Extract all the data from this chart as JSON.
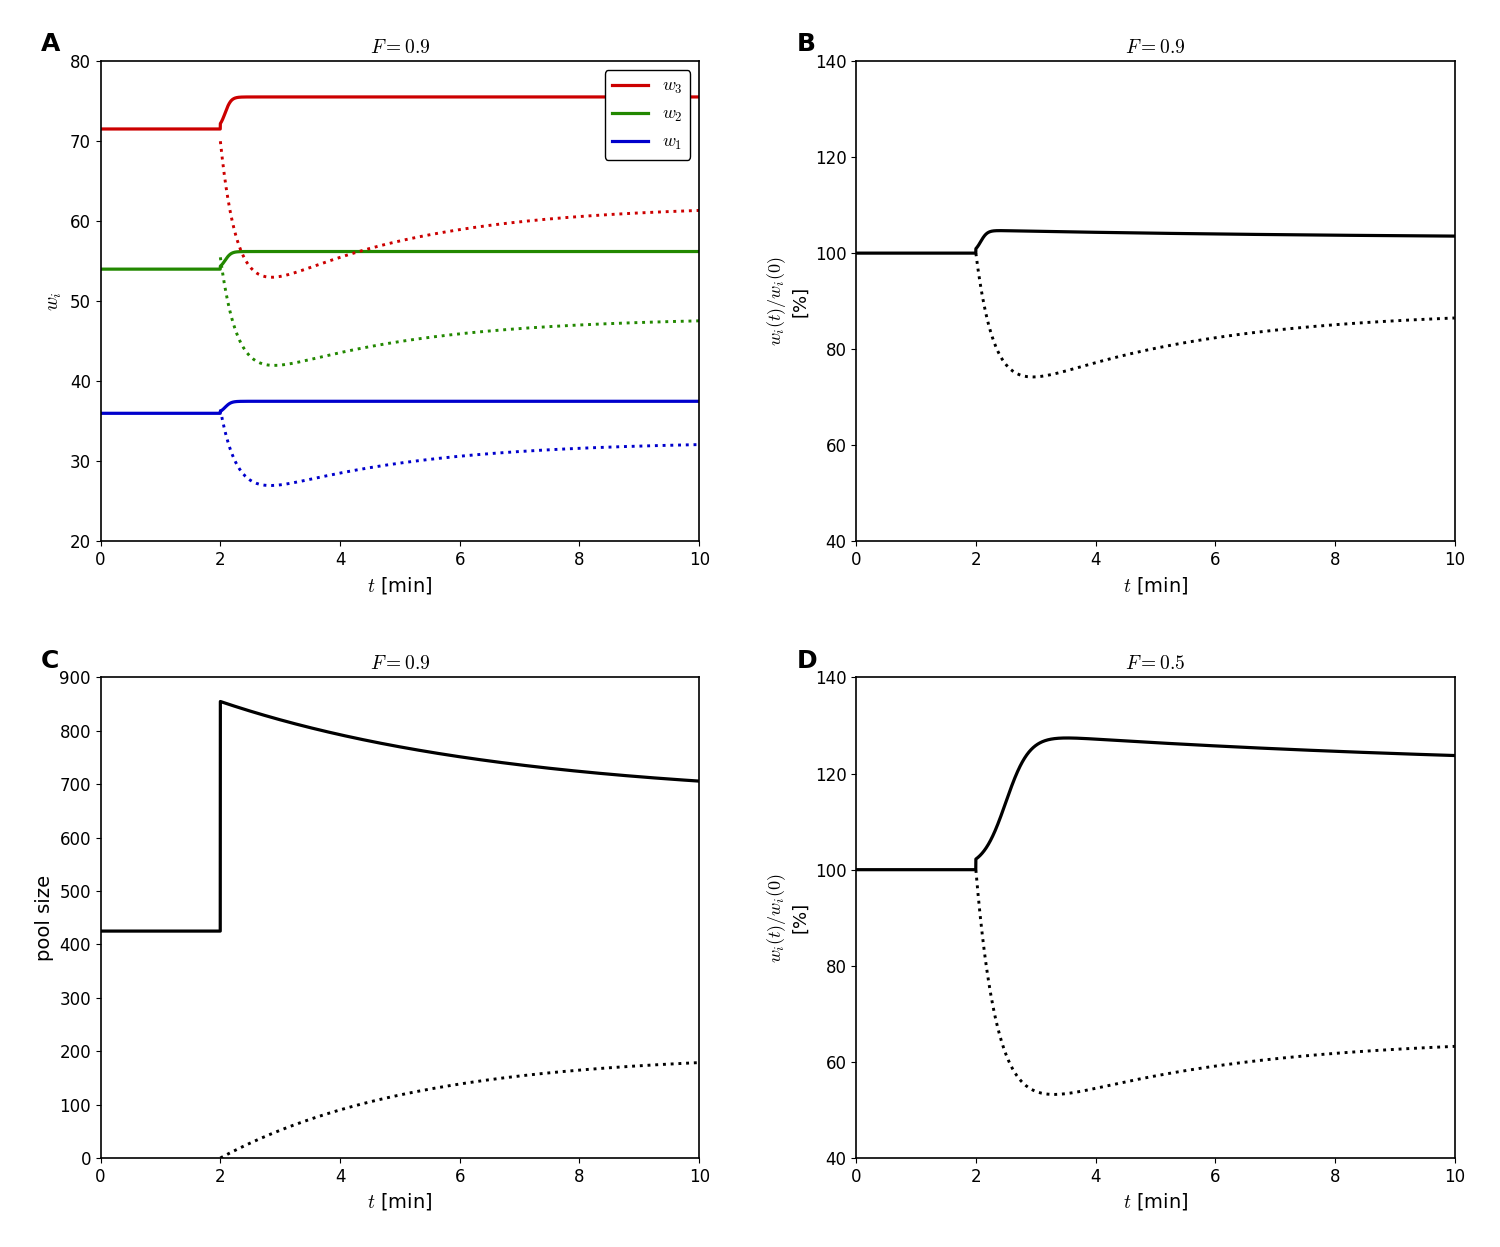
{
  "fig_width": 15.0,
  "fig_height": 12.47,
  "panel_A": {
    "title": "$F = 0.9$",
    "xlabel": "$t$ [min]",
    "ylabel": "$w_i$",
    "xlim": [
      0,
      10
    ],
    "ylim": [
      20,
      80
    ],
    "yticks": [
      20,
      30,
      40,
      50,
      60,
      70,
      80
    ],
    "xticks": [
      0,
      2,
      4,
      6,
      8,
      10
    ]
  },
  "panel_B": {
    "title": "$F = 0.9$",
    "xlabel": "$t$ [min]",
    "xlim": [
      0,
      10
    ],
    "ylim": [
      40,
      140
    ],
    "yticks": [
      40,
      60,
      80,
      100,
      120,
      140
    ],
    "xticks": [
      0,
      2,
      4,
      6,
      8,
      10
    ]
  },
  "panel_C": {
    "title": "$F = 0.9$",
    "xlabel": "$t$ [min]",
    "ylabel": "pool size",
    "xlim": [
      0,
      10
    ],
    "ylim": [
      0,
      900
    ],
    "yticks": [
      0,
      100,
      200,
      300,
      400,
      500,
      600,
      700,
      800,
      900
    ],
    "xticks": [
      0,
      2,
      4,
      6,
      8,
      10
    ]
  },
  "panel_D": {
    "title": "$F = 0.5$",
    "xlabel": "$t$ [min]",
    "xlim": [
      0,
      10
    ],
    "ylim": [
      40,
      140
    ],
    "yticks": [
      40,
      60,
      80,
      100,
      120,
      140
    ],
    "xticks": [
      0,
      2,
      4,
      6,
      8,
      10
    ]
  },
  "colors": {
    "w3": "#cc0000",
    "w2": "#228800",
    "w1": "#0000cc",
    "black": "#000000"
  },
  "lw_solid": 2.3,
  "lw_dotted": 2.1,
  "label_fontsize": 14,
  "tick_fontsize": 12,
  "title_fontsize": 14,
  "panel_label_fontsize": 18
}
